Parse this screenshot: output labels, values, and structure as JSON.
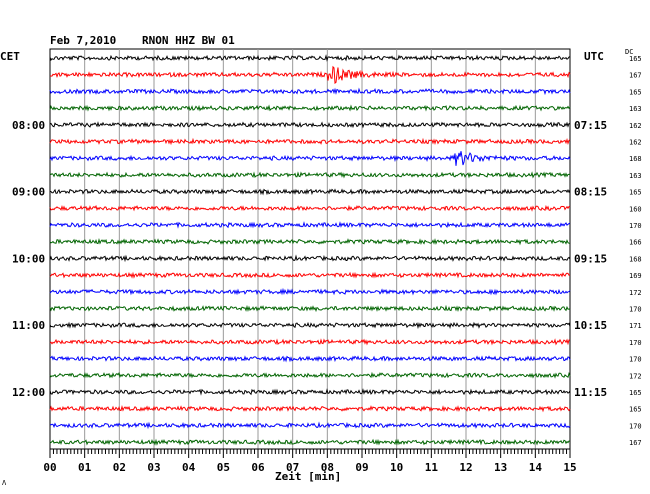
{
  "header": {
    "date": "Feb 7,2010",
    "station": "RNON HHZ BW 01",
    "left_tz": "CET",
    "right_tz": "UTC",
    "dc_label": "DC"
  },
  "chart_data": {
    "type": "line",
    "title": "Feb 7,2010  RNON HHZ BW 01",
    "xlabel": "Zeit [min]",
    "x_ticks": [
      "00",
      "01",
      "02",
      "03",
      "04",
      "05",
      "06",
      "07",
      "08",
      "09",
      "10",
      "11",
      "12",
      "13",
      "14",
      "15"
    ],
    "xlim": [
      0,
      15
    ],
    "grid": true,
    "trace_colors": [
      "#000000",
      "#ff0000",
      "#0000ff",
      "#006400"
    ],
    "left_labels": [
      {
        "row": 4,
        "text": "08:00"
      },
      {
        "row": 8,
        "text": "09:00"
      },
      {
        "row": 12,
        "text": "10:00"
      },
      {
        "row": 16,
        "text": "11:00"
      },
      {
        "row": 20,
        "text": "12:00"
      }
    ],
    "right_labels": [
      {
        "row": 4,
        "text": "07:15"
      },
      {
        "row": 8,
        "text": "08:15"
      },
      {
        "row": 12,
        "text": "09:15"
      },
      {
        "row": 16,
        "text": "10:15"
      },
      {
        "row": 20,
        "text": "11:15"
      }
    ],
    "dc_values": [
      "165",
      "167",
      "165",
      "163",
      "162",
      "162",
      "168",
      "163",
      "165",
      "160",
      "170",
      "166",
      "168",
      "169",
      "172",
      "170",
      "171",
      "170",
      "170",
      "172",
      "165",
      "165",
      "170",
      "167"
    ],
    "events": [
      {
        "row": 1,
        "minute": 8.1,
        "amplitude": 1.0
      },
      {
        "row": 6,
        "minute": 11.75,
        "amplitude": 0.85
      }
    ]
  },
  "footer": {
    "corner_mark": "Λ"
  }
}
